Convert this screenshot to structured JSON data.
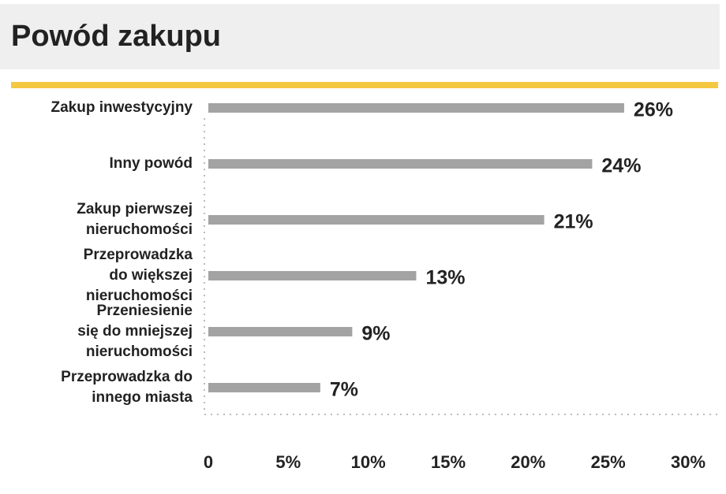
{
  "chart_data": {
    "type": "barh",
    "title": "Powód zakupu",
    "categories": [
      [
        "Zakup inwestycyjny"
      ],
      [
        "Inny powód"
      ],
      [
        "Zakup pierwszej",
        "nieruchomości"
      ],
      [
        "Przeprowadzka",
        "do większej",
        "nieruchomości"
      ],
      [
        "Przeniesienie",
        "się do mniejszej",
        "nieruchomości"
      ],
      [
        "Przeprowadzka do",
        "innego miasta"
      ]
    ],
    "values": [
      26,
      24,
      21,
      13,
      9,
      7
    ],
    "value_labels": [
      "26%",
      "24%",
      "21%",
      "13%",
      "9%",
      "7%"
    ],
    "color": "#a3a3a3",
    "xlim": [
      0,
      30
    ],
    "xticks": [
      0,
      {
        "value": 5,
        "label": "5%"
      },
      {
        "value": 10,
        "label": "10%"
      },
      {
        "value": 15,
        "label": "15%"
      },
      {
        "value": 20,
        "label": "20%"
      },
      {
        "value": 25,
        "label": "25%"
      },
      {
        "value": 30,
        "label": "30%"
      }
    ]
  }
}
